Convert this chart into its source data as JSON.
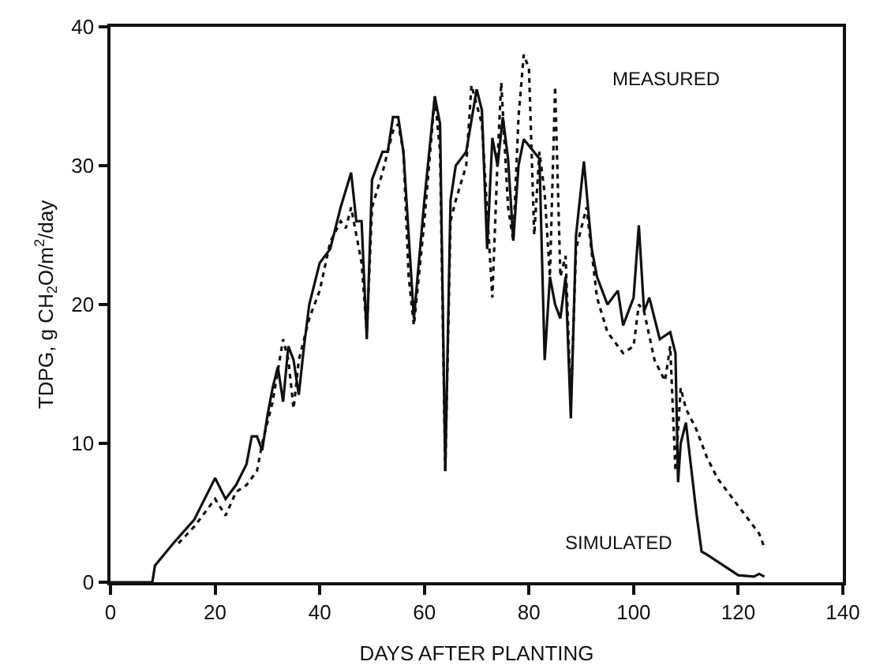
{
  "chart_data": {
    "type": "line",
    "xlabel": "DAYS AFTER PLANTING",
    "ylabel": "TDPG, g CH$_{2}$O/m$^{2}$/day",
    "xlim": [
      0,
      140
    ],
    "xticks": [
      0,
      20,
      40,
      60,
      80,
      100,
      120,
      140
    ],
    "ylim": [
      0,
      40
    ],
    "yticks": [
      0,
      10,
      20,
      30,
      40
    ],
    "marker": "none",
    "annotations": [
      "MEASURED",
      "SIMULATED"
    ],
    "series": [
      {
        "color": "#111111",
        "line_style": "solid",
        "x": [
          0,
          8,
          8.5,
          12,
          16,
          20,
          22,
          24,
          26,
          27,
          28,
          29,
          30,
          31,
          32,
          33,
          34,
          35,
          36,
          37,
          38,
          40,
          42,
          44,
          46,
          47,
          48,
          49,
          50,
          52,
          53,
          54,
          55,
          56,
          58,
          60,
          62,
          63,
          64,
          65,
          66,
          68,
          70,
          71,
          72,
          73,
          74,
          75,
          76,
          77,
          78,
          79,
          82,
          83,
          84,
          85,
          86,
          87,
          88,
          89,
          90.5,
          92,
          93,
          95,
          97,
          98,
          100,
          101,
          102,
          103,
          105,
          107,
          108,
          108.5,
          109,
          110,
          112,
          113,
          114,
          116,
          118,
          120,
          123,
          124,
          125
        ],
        "values": [
          0,
          0,
          1.2,
          2.8,
          4.5,
          7.5,
          6,
          7,
          8.5,
          10.5,
          10.5,
          9.5,
          12,
          14,
          15.5,
          13,
          17,
          16,
          13.5,
          17,
          20,
          23,
          24,
          27,
          29.5,
          26,
          26,
          17.5,
          29,
          31,
          31,
          33.5,
          33.5,
          31,
          19,
          27.5,
          35,
          33,
          8,
          27.5,
          30,
          31,
          35.5,
          34,
          24,
          32,
          30,
          33.5,
          30.5,
          24.6,
          30,
          31.9,
          30.5,
          16,
          22,
          20,
          19,
          22,
          11.8,
          25,
          30.3,
          24,
          22,
          20,
          21,
          18.5,
          20.5,
          25.7,
          19.5,
          20.5,
          17.5,
          18,
          16.5,
          7.2,
          10,
          11.5,
          5,
          2.2,
          2,
          1.5,
          1,
          0.5,
          0.4,
          0.6,
          0.4
        ]
      },
      {
        "color": "#111111",
        "line_style": "dotted",
        "x": [
          13,
          16,
          20,
          22,
          24,
          26,
          28,
          29,
          31,
          33,
          34,
          35,
          36,
          38,
          40,
          42,
          44,
          45,
          46,
          48,
          49,
          50,
          52,
          54,
          55,
          56,
          57,
          58,
          60,
          62,
          63,
          64,
          65,
          66,
          68,
          69,
          71,
          73,
          74,
          74.7,
          76,
          77,
          78,
          79,
          80,
          81,
          82,
          83,
          84,
          85,
          86,
          87,
          88,
          89,
          91,
          93,
          95,
          97,
          98,
          100,
          101,
          102,
          104,
          106,
          107,
          108,
          109,
          110,
          112,
          114,
          116,
          118,
          120,
          122,
          124,
          125
        ],
        "values": [
          2.8,
          4,
          6,
          4.8,
          6.5,
          7,
          8,
          10,
          13,
          17.5,
          16,
          12.5,
          16,
          19,
          21,
          24.5,
          26,
          25.5,
          27,
          23,
          18,
          27,
          29.5,
          32.5,
          33,
          31,
          22,
          18.5,
          26,
          35,
          31,
          8,
          26,
          27.5,
          30,
          35.8,
          33,
          20.5,
          30.5,
          36,
          27,
          24.6,
          33.5,
          38,
          37,
          25,
          31,
          28,
          22,
          35.7,
          22,
          23.5,
          13,
          24,
          27,
          20.5,
          18,
          17,
          16.5,
          17,
          20,
          19.5,
          16,
          14.5,
          17,
          8,
          14,
          12.5,
          11,
          9,
          7.5,
          6.5,
          5.5,
          4.5,
          3.5,
          2.5
        ]
      }
    ]
  }
}
